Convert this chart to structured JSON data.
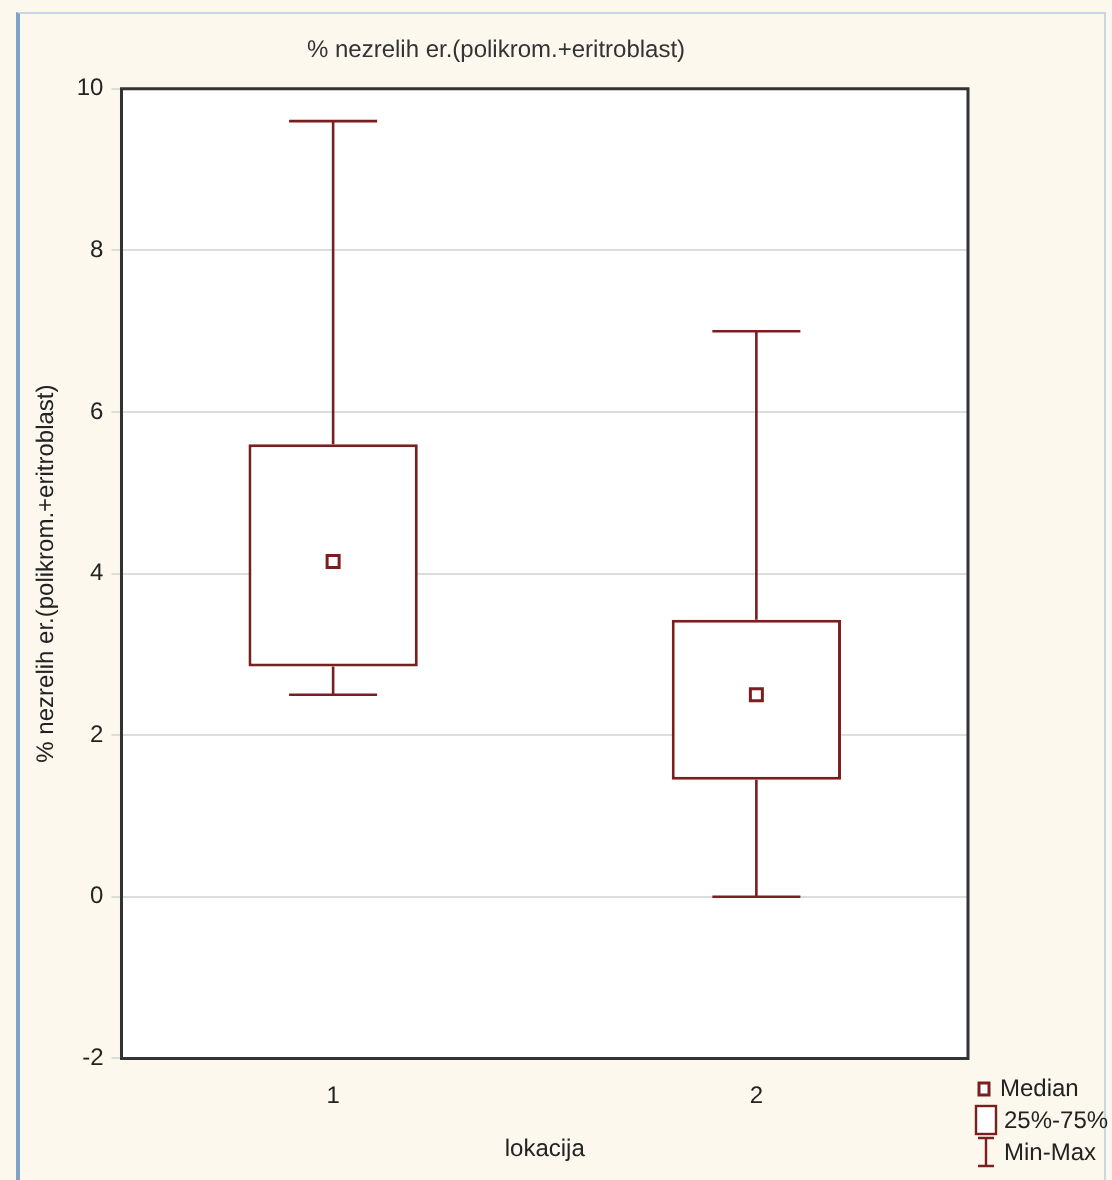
{
  "chart_data": {
    "type": "box",
    "title": "% nezrelih er.(polikrom.+eritroblast)",
    "xlabel": "lokacija",
    "ylabel": "% nezrelih er.(polikrom.+eritroblast)",
    "categories": [
      "1",
      "2"
    ],
    "series": [
      {
        "color": "#7a1f1f",
        "boxes": [
          {
            "low": 2.5,
            "q1": 2.85,
            "median": 4.15,
            "q3": 5.6,
            "high": 9.6
          },
          {
            "low": 0,
            "q1": 1.45,
            "median": 2.5,
            "q3": 3.43,
            "high": 7
          }
        ]
      }
    ],
    "ylim": [
      -2,
      10
    ],
    "yticks": [
      -2,
      0,
      2,
      4,
      6,
      8,
      10
    ],
    "grid": "y",
    "marker": "square",
    "annotations": [
      "Median",
      "25%-75%",
      "Min-Max"
    ]
  }
}
